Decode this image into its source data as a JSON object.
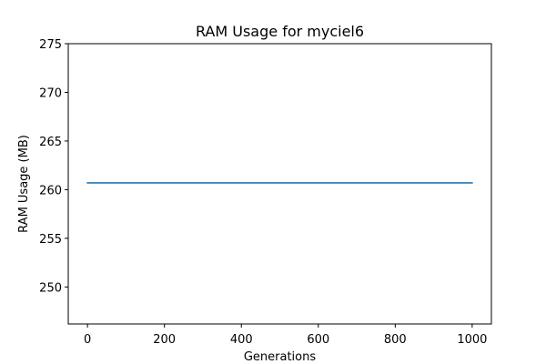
{
  "chart_data": {
    "type": "line",
    "title": "RAM Usage for myciel6",
    "xlabel": "Generations",
    "ylabel": "RAM Usage (MB)",
    "xlim": [
      -50,
      1050
    ],
    "ylim": [
      246.2,
      275
    ],
    "x_ticks": [
      0,
      200,
      400,
      600,
      800,
      1000
    ],
    "y_ticks": [
      250,
      255,
      260,
      265,
      270,
      275
    ],
    "grid": false,
    "legend": "none",
    "series": [
      {
        "color": "#1f77b4",
        "x": [
          0,
          1000
        ],
        "y": [
          260.7,
          260.7
        ]
      }
    ]
  }
}
